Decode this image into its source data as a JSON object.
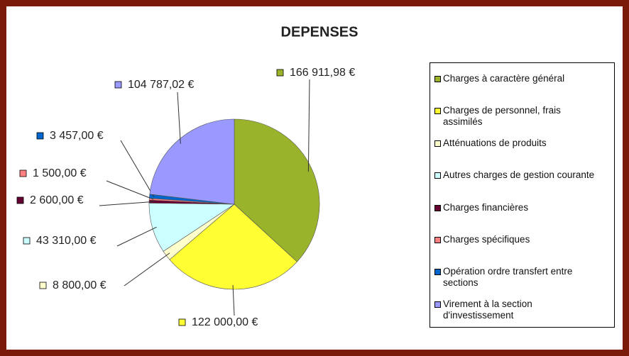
{
  "chart_data": {
    "type": "pie",
    "title": "DEPENSES",
    "categories": [
      "Charges à caractère général",
      "Charges de personnel, frais assimilés",
      "Atténuations de produits",
      "Autres charges de gestion courante",
      "Charges financières",
      "Charges spécifiques",
      "Opération ordre transfert entre sections",
      "Virement à la section d'investissement"
    ],
    "values": [
      166911.98,
      122000,
      8800,
      43310,
      2600,
      1500,
      3457,
      104787.02
    ],
    "value_labels": [
      "166 911,98 €",
      "122 000,00 €",
      "8 800,00 €",
      "43 310,00 €",
      "2 600,00 €",
      "1 500,00 €",
      "3 457,00 €",
      "104 787,02 €"
    ],
    "colors": [
      "#99b32a",
      "#ffff33",
      "#ffffcc",
      "#ccffff",
      "#660033",
      "#ff8080",
      "#0066cc",
      "#9999ff"
    ],
    "legend": "right"
  }
}
